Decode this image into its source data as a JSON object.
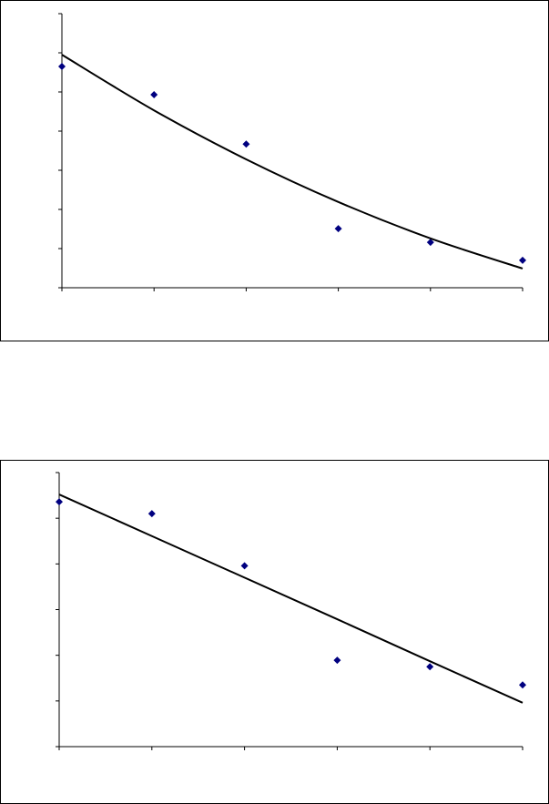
{
  "chart_data": [
    {
      "type": "scatter",
      "x": [
        0,
        1,
        2,
        3,
        4,
        5
      ],
      "xlim": [
        0,
        5
      ],
      "xticks": [
        0,
        1,
        2,
        3,
        4,
        5
      ],
      "ylim": [
        0,
        7
      ],
      "yticks": [
        0,
        1,
        2,
        3,
        4,
        5,
        6,
        7
      ],
      "series": [
        {
          "color": "#000080",
          "marker": "diamond",
          "values": [
            5.65,
            4.93,
            3.67,
            1.51,
            1.16,
            0.7
          ]
        },
        {
          "color": "#000000",
          "line": true,
          "smooth": true,
          "values": [
            5.95,
            4.53,
            3.28,
            2.19,
            1.26,
            0.49
          ]
        }
      ]
    },
    {
      "type": "scatter",
      "x": [
        0,
        1,
        2,
        3,
        4,
        5
      ],
      "xlim": [
        0,
        5
      ],
      "xticks": [
        0,
        1,
        2,
        3,
        4,
        5
      ],
      "ylim": [
        0,
        6
      ],
      "yticks": [
        0,
        1,
        2,
        3,
        4,
        5,
        6
      ],
      "series": [
        {
          "color": "#000080",
          "marker": "diamond",
          "values": [
            5.36,
            5.1,
            3.96,
            1.89,
            1.75,
            1.35
          ]
        },
        {
          "color": "#000000",
          "line": true,
          "smooth": false,
          "values": [
            5.52,
            4.61,
            3.7,
            2.79,
            1.87,
            0.96
          ]
        }
      ]
    }
  ]
}
